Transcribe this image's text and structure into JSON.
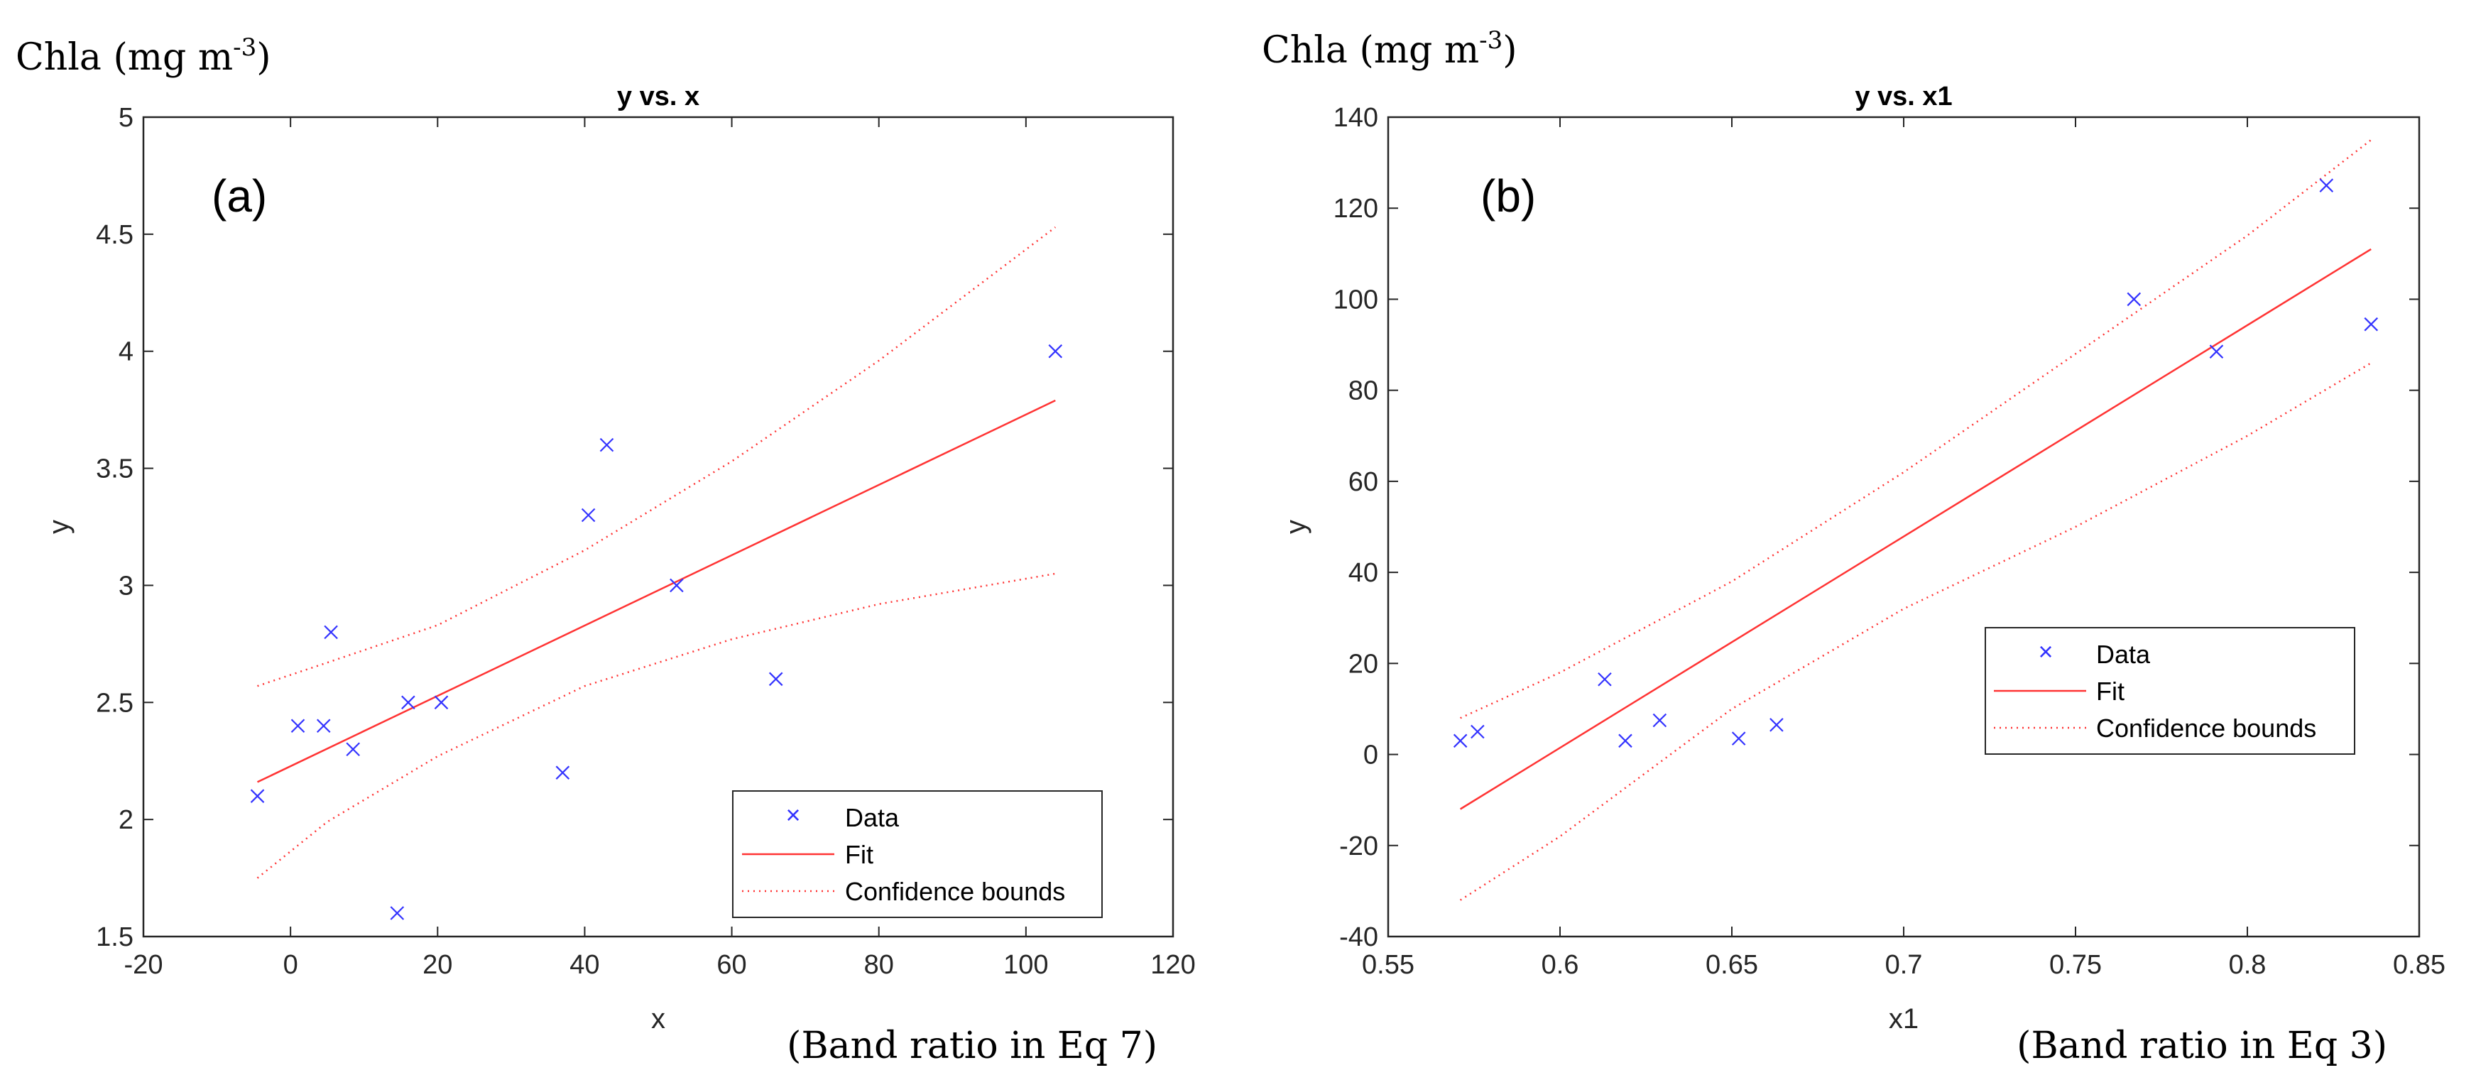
{
  "chart_data": [
    {
      "type": "scatter",
      "title": "y vs. x",
      "panel_label": "(a)",
      "xlabel": "x",
      "ylabel": "y",
      "xlim": [
        -20,
        120
      ],
      "ylim": [
        1.5,
        5
      ],
      "xticks": [
        -20,
        0,
        20,
        40,
        60,
        80,
        100,
        120
      ],
      "yticks": [
        1.5,
        2,
        2.5,
        3,
        3.5,
        4,
        4.5,
        5
      ],
      "outer_ylabel": "Chla (mg m",
      "outer_ylabel_sup": "-3",
      "outer_ylabel_close": ")",
      "outer_xlabel": "(Band ratio in Eq 7)",
      "legend": {
        "data": "Data",
        "fit": "Fit",
        "bounds": "Confidence bounds",
        "location": "bottom-right"
      },
      "series": [
        {
          "name": "Data",
          "kind": "scatter",
          "color": "#3333ff",
          "points": [
            [
              -4.5,
              2.1
            ],
            [
              1,
              2.4
            ],
            [
              4.5,
              2.4
            ],
            [
              5.5,
              2.8
            ],
            [
              8.5,
              2.3
            ],
            [
              14.5,
              1.6
            ],
            [
              16,
              2.5
            ],
            [
              20.5,
              2.5
            ],
            [
              37,
              2.2
            ],
            [
              40.5,
              3.3
            ],
            [
              43,
              3.6
            ],
            [
              52.5,
              3.0
            ],
            [
              66,
              2.6
            ],
            [
              104,
              4.0
            ]
          ]
        },
        {
          "name": "Fit",
          "kind": "line",
          "color": "#ff3333",
          "points": [
            [
              -4.5,
              2.16
            ],
            [
              104,
              3.79
            ]
          ]
        },
        {
          "name": "Confidence bounds (upper)",
          "kind": "dotted",
          "color": "#ff3333",
          "points": [
            [
              -4.5,
              2.57
            ],
            [
              5,
              2.67
            ],
            [
              20,
              2.83
            ],
            [
              40,
              3.15
            ],
            [
              60,
              3.53
            ],
            [
              80,
              3.96
            ],
            [
              104,
              4.53
            ]
          ]
        },
        {
          "name": "Confidence bounds (lower)",
          "kind": "dotted",
          "color": "#ff3333",
          "points": [
            [
              -4.5,
              1.75
            ],
            [
              5,
              1.99
            ],
            [
              20,
              2.27
            ],
            [
              40,
              2.57
            ],
            [
              60,
              2.77
            ],
            [
              80,
              2.92
            ],
            [
              104,
              3.05
            ]
          ]
        }
      ]
    },
    {
      "type": "scatter",
      "title": "y vs. x1",
      "panel_label": "(b)",
      "xlabel": "x1",
      "ylabel": "y",
      "xlim": [
        0.55,
        0.85
      ],
      "ylim": [
        -40,
        140
      ],
      "xticks": [
        0.55,
        0.6,
        0.65,
        0.7,
        0.75,
        0.8,
        0.85
      ],
      "yticks": [
        -40,
        -20,
        0,
        20,
        40,
        60,
        80,
        100,
        120,
        140
      ],
      "outer_ylabel": "Chla (mg m",
      "outer_ylabel_sup": "-3",
      "outer_ylabel_close": ")",
      "outer_xlabel": "(Band ratio in Eq 3)",
      "legend": {
        "data": "Data",
        "fit": "Fit",
        "bounds": "Confidence bounds",
        "location": "middle-right"
      },
      "series": [
        {
          "name": "Data",
          "kind": "scatter",
          "color": "#3333ff",
          "points": [
            [
              0.571,
              3
            ],
            [
              0.576,
              5
            ],
            [
              0.613,
              16.5
            ],
            [
              0.619,
              3
            ],
            [
              0.629,
              7.5
            ],
            [
              0.652,
              3.5
            ],
            [
              0.663,
              6.5
            ],
            [
              0.767,
              100
            ],
            [
              0.791,
              88.5
            ],
            [
              0.823,
              125
            ],
            [
              0.836,
              94.5
            ]
          ]
        },
        {
          "name": "Fit",
          "kind": "line",
          "color": "#ff3333",
          "points": [
            [
              0.571,
              -12
            ],
            [
              0.836,
              111
            ]
          ]
        },
        {
          "name": "Confidence bounds (upper)",
          "kind": "dotted",
          "color": "#ff3333",
          "points": [
            [
              0.571,
              8
            ],
            [
              0.6,
              18
            ],
            [
              0.65,
              38
            ],
            [
              0.7,
              62
            ],
            [
              0.75,
              88
            ],
            [
              0.8,
              114
            ],
            [
              0.836,
              135
            ]
          ]
        },
        {
          "name": "Confidence bounds (lower)",
          "kind": "dotted",
          "color": "#ff3333",
          "points": [
            [
              0.571,
              -32
            ],
            [
              0.6,
              -18
            ],
            [
              0.65,
              10
            ],
            [
              0.7,
              32
            ],
            [
              0.75,
              50
            ],
            [
              0.8,
              70
            ],
            [
              0.836,
              86
            ]
          ]
        }
      ]
    }
  ]
}
